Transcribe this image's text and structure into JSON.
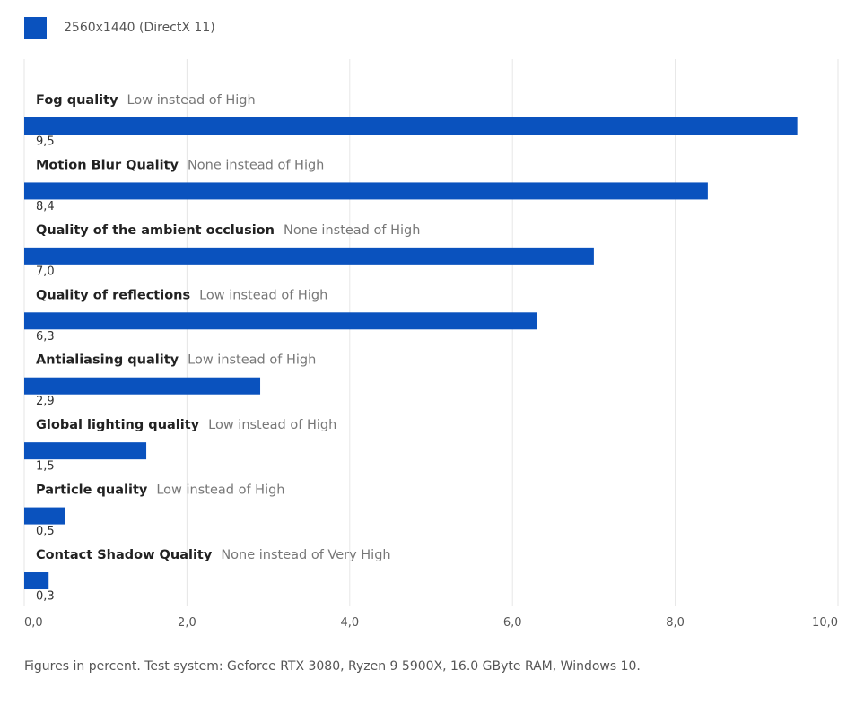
{
  "legend": {
    "label": "2560x1440 (DirectX 11)",
    "color": "#0a52be"
  },
  "chart_data": {
    "type": "bar",
    "orientation": "horizontal",
    "series": [
      {
        "name": "2560x1440 (DirectX 11)",
        "color": "#0a52be"
      }
    ],
    "categories": [
      {
        "name": "Fog quality",
        "detail": "Low instead of High",
        "value": 9.5,
        "value_label": "9,5"
      },
      {
        "name": "Motion Blur Quality",
        "detail": "None instead of High",
        "value": 8.4,
        "value_label": "8,4"
      },
      {
        "name": "Quality of the ambient occlusion",
        "detail": "None instead of High",
        "value": 7.0,
        "value_label": "7,0"
      },
      {
        "name": "Quality of reflections",
        "detail": "Low instead of High",
        "value": 6.3,
        "value_label": "6,3"
      },
      {
        "name": "Antialiasing quality",
        "detail": "Low instead of High",
        "value": 2.9,
        "value_label": "2,9"
      },
      {
        "name": "Global lighting quality",
        "detail": "Low instead of High",
        "value": 1.5,
        "value_label": "1,5"
      },
      {
        "name": "Particle quality",
        "detail": "Low instead of High",
        "value": 0.5,
        "value_label": "0,5"
      },
      {
        "name": "Contact Shadow Quality",
        "detail": "None instead of Very High",
        "value": 0.3,
        "value_label": "0,3"
      }
    ],
    "xlim": [
      0,
      10
    ],
    "ticks": [
      {
        "value": 0,
        "label": "0,0"
      },
      {
        "value": 2,
        "label": "2,0"
      },
      {
        "value": 4,
        "label": "4,0"
      },
      {
        "value": 6,
        "label": "6,0"
      },
      {
        "value": 8,
        "label": "8,0"
      },
      {
        "value": 10,
        "label": "10,0"
      }
    ],
    "grid": true
  },
  "footnote": "Figures in percent. Test system: Geforce RTX 3080, Ryzen 9 5900X, 16.0 GByte RAM, Windows 10."
}
